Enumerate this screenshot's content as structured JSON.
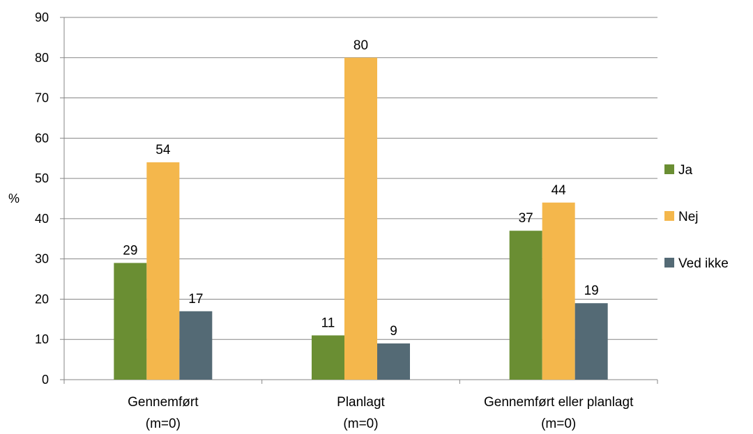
{
  "chart_data": {
    "type": "bar",
    "title": "",
    "ylabel": "%",
    "xlabel": "",
    "ylim": [
      0,
      90
    ],
    "yticks": [
      "0",
      "10",
      "20",
      "30",
      "40",
      "50",
      "60",
      "70",
      "80",
      "90"
    ],
    "grid": true,
    "legend_position": "right",
    "categories": [
      [
        "Gennemført",
        "(m=0)"
      ],
      [
        "Planlagt",
        "(m=0)"
      ],
      [
        "Gennemført eller planlagt",
        "(m=0)"
      ]
    ],
    "series": [
      {
        "name": "Ja",
        "color": "#6a8e33",
        "values": [
          29,
          11,
          37
        ]
      },
      {
        "name": "Nej",
        "color": "#f4b74c",
        "values": [
          54,
          80,
          44
        ]
      },
      {
        "name": "Ved ikke",
        "color": "#546a75",
        "values": [
          17,
          9,
          19
        ]
      }
    ]
  }
}
